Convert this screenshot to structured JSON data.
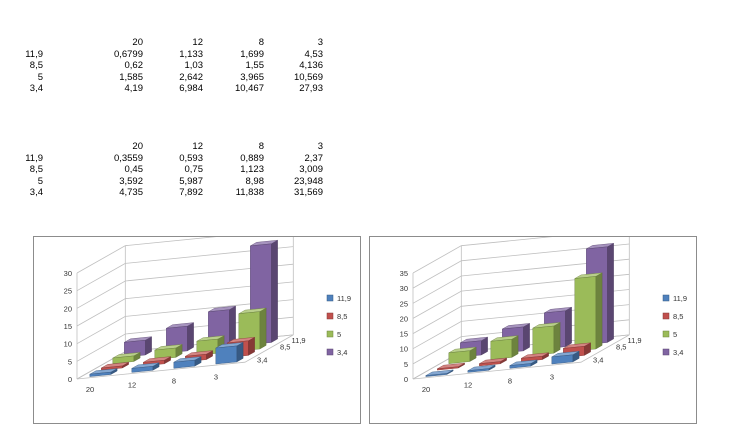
{
  "tables": [
    {
      "header": [
        "20",
        "12",
        "8",
        "3"
      ],
      "rows": [
        {
          "label": "11,9",
          "values": [
            "0,6799",
            "1,133",
            "1,699",
            "4,53"
          ]
        },
        {
          "label": "8,5",
          "values": [
            "0,62",
            "1,03",
            "1,55",
            "4,136"
          ]
        },
        {
          "label": "5",
          "values": [
            "1,585",
            "2,642",
            "3,965",
            "10,569"
          ]
        },
        {
          "label": "3,4",
          "values": [
            "4,19",
            "6,984",
            "10,467",
            "27,93"
          ]
        }
      ]
    },
    {
      "header": [
        "20",
        "12",
        "8",
        "3"
      ],
      "rows": [
        {
          "label": "11,9",
          "values": [
            "0,3559",
            "0,593",
            "0,889",
            "2,37"
          ]
        },
        {
          "label": "8,5",
          "values": [
            "0,45",
            "0,75",
            "1,123",
            "3,009"
          ]
        },
        {
          "label": "5",
          "values": [
            "3,592",
            "5,987",
            "8,98",
            "23,948"
          ]
        },
        {
          "label": "3,4",
          "values": [
            "4,735",
            "7,892",
            "11,838",
            "31,569"
          ]
        }
      ]
    }
  ],
  "chart_data": [
    {
      "type": "bar",
      "categories": [
        "20",
        "12",
        "8",
        "3"
      ],
      "depth_labels": [
        "11,9",
        "8,5",
        "3,4"
      ],
      "y_ticks": [
        "0",
        "5",
        "10",
        "15",
        "20",
        "25",
        "30"
      ],
      "ylim": [
        0,
        30
      ],
      "legend_position": "right",
      "series": [
        {
          "name": "11,9",
          "color": "#4f81bd",
          "values": [
            0.6799,
            1.133,
            1.699,
            4.53
          ]
        },
        {
          "name": "8,5",
          "color": "#c0504d",
          "values": [
            0.62,
            1.03,
            1.55,
            4.136
          ]
        },
        {
          "name": "5",
          "color": "#9bbb59",
          "values": [
            1.585,
            2.642,
            3.965,
            10.569
          ]
        },
        {
          "name": "3,4",
          "color": "#8064a2",
          "values": [
            4.19,
            6.984,
            10.467,
            27.93
          ]
        }
      ]
    },
    {
      "type": "bar",
      "categories": [
        "20",
        "12",
        "8",
        "3"
      ],
      "depth_labels": [
        "11,9",
        "8,5",
        "3,4"
      ],
      "y_ticks": [
        "0",
        "5",
        "10",
        "15",
        "20",
        "25",
        "30",
        "35"
      ],
      "ylim": [
        0,
        35
      ],
      "legend_position": "right",
      "series": [
        {
          "name": "11,9",
          "color": "#4f81bd",
          "values": [
            0.3559,
            0.593,
            0.889,
            2.37
          ]
        },
        {
          "name": "8,5",
          "color": "#c0504d",
          "values": [
            0.45,
            0.75,
            1.123,
            3.009
          ]
        },
        {
          "name": "5",
          "color": "#9bbb59",
          "values": [
            3.592,
            5.987,
            8.98,
            23.948
          ]
        },
        {
          "name": "3,4",
          "color": "#8064a2",
          "values": [
            4.735,
            7.892,
            11.838,
            31.569
          ]
        }
      ]
    }
  ]
}
